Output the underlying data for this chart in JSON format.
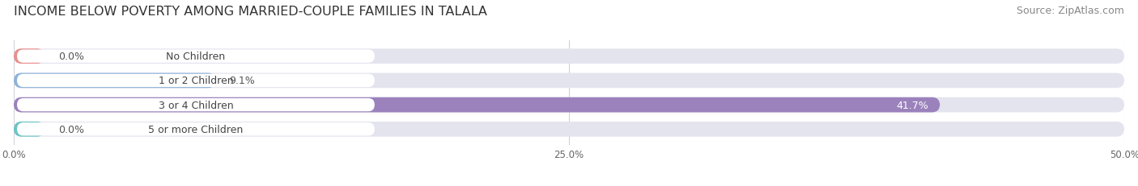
{
  "title": "INCOME BELOW POVERTY AMONG MARRIED-COUPLE FAMILIES IN TALALA",
  "source": "Source: ZipAtlas.com",
  "categories": [
    "No Children",
    "1 or 2 Children",
    "3 or 4 Children",
    "5 or more Children"
  ],
  "values": [
    0.0,
    9.1,
    41.7,
    0.0
  ],
  "bar_colors": [
    "#e8908e",
    "#8fb3d9",
    "#9b82bc",
    "#6dc4c4"
  ],
  "bar_bg_color": "#e4e4ef",
  "label_bg_color": "#ffffff",
  "xlim": [
    0,
    50.0
  ],
  "xticks": [
    0.0,
    25.0,
    50.0
  ],
  "xtick_labels": [
    "0.0%",
    "25.0%",
    "50.0%"
  ],
  "title_fontsize": 11.5,
  "source_fontsize": 9,
  "label_fontsize": 9,
  "value_fontsize": 9,
  "bar_height": 0.62,
  "background_color": "#ffffff",
  "value_inside_threshold": 35.0
}
